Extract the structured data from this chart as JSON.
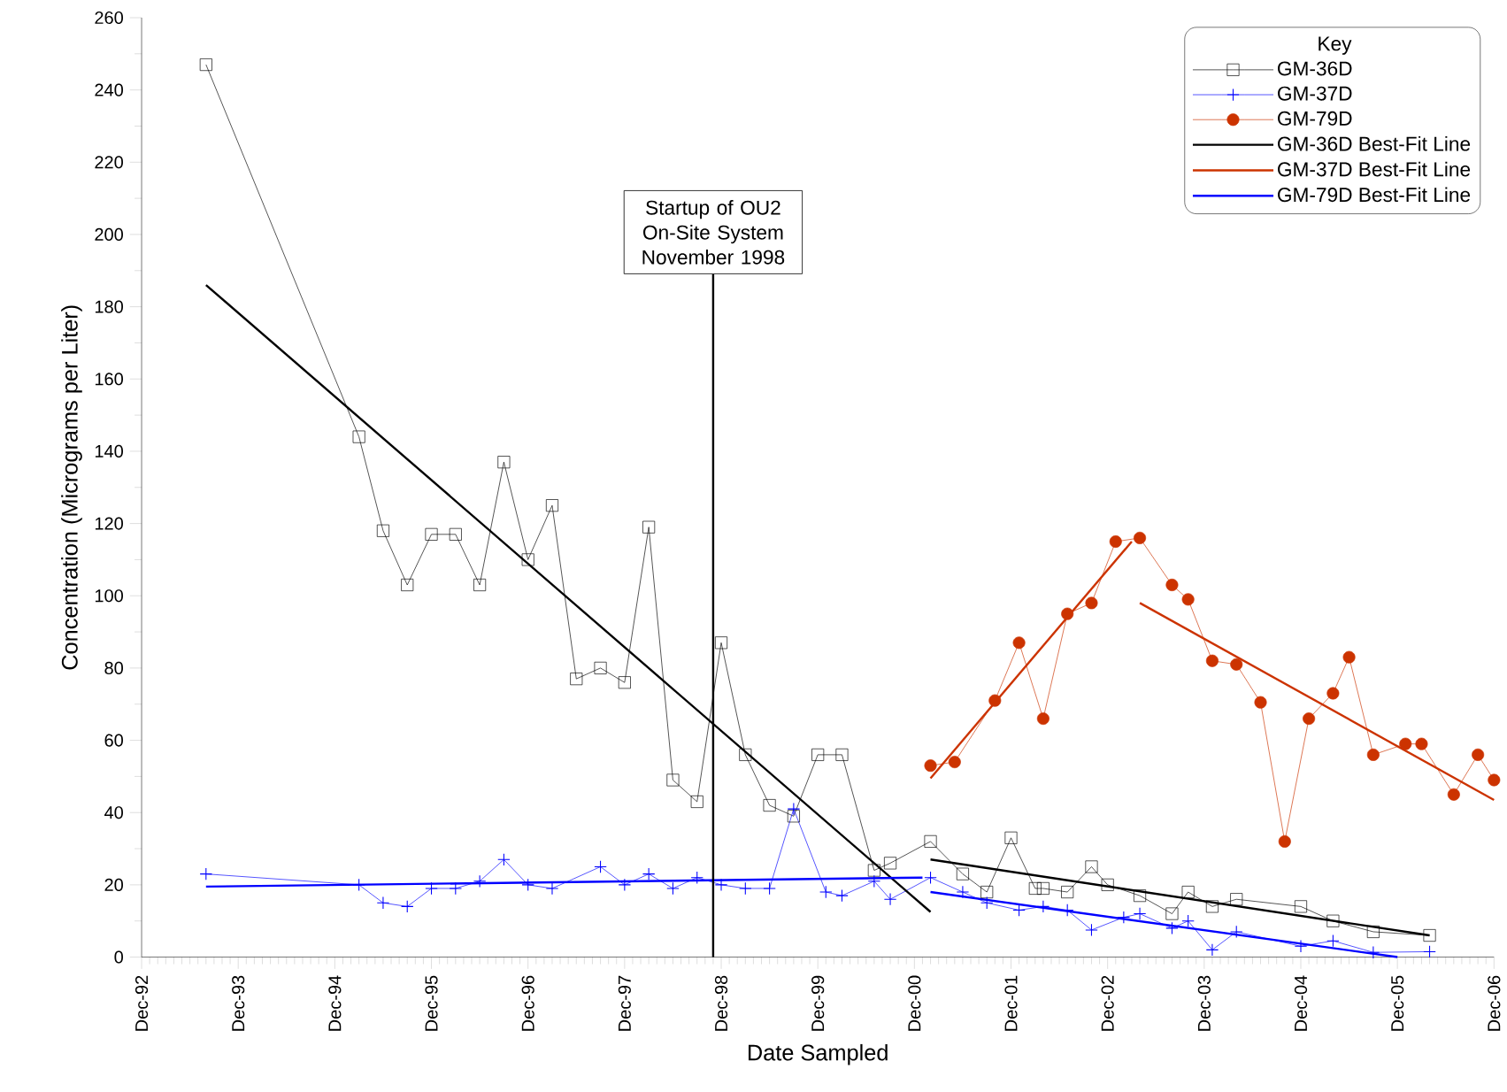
{
  "chart_data": {
    "type": "line",
    "xlabel": "Date Sampled",
    "ylabel": "Concentration (Micrograms per Liter)",
    "legend_title": "Key",
    "legend": "top right",
    "grid": false,
    "xlim": [
      "1992-12",
      "2006-12"
    ],
    "xticks": [
      {
        "value": "1992-12",
        "label": "Dec-92"
      },
      {
        "value": "1993-12",
        "label": "Dec-93"
      },
      {
        "value": "1994-12",
        "label": "Dec-94"
      },
      {
        "value": "1995-12",
        "label": "Dec-95"
      },
      {
        "value": "1996-12",
        "label": "Dec-96"
      },
      {
        "value": "1997-12",
        "label": "Dec-97"
      },
      {
        "value": "1998-12",
        "label": "Dec-98"
      },
      {
        "value": "1999-12",
        "label": "Dec-99"
      },
      {
        "value": "2000-12",
        "label": "Dec-00"
      },
      {
        "value": "2001-12",
        "label": "Dec-01"
      },
      {
        "value": "2002-12",
        "label": "Dec-02"
      },
      {
        "value": "2003-12",
        "label": "Dec-03"
      },
      {
        "value": "2004-12",
        "label": "Dec-04"
      },
      {
        "value": "2005-12",
        "label": "Dec-05"
      },
      {
        "value": "2006-12",
        "label": "Dec-06"
      }
    ],
    "ylim": [
      0,
      260
    ],
    "yticks": [
      0,
      20,
      40,
      60,
      80,
      100,
      120,
      140,
      160,
      180,
      200,
      220,
      240,
      260
    ],
    "ref_lines": [
      {
        "axis": "x",
        "value": "1998-11",
        "label": "Startup of OU2 On-Site System November 1998",
        "color": "#000000"
      }
    ],
    "series": [
      {
        "name": "GM-36D",
        "color": "#000000",
        "marker": "square",
        "x": [
          "1993-08",
          "1995-03",
          "1995-06",
          "1995-09",
          "1995-12",
          "1996-03",
          "1996-06",
          "1996-09",
          "1996-12",
          "1997-03",
          "1997-06",
          "1997-09",
          "1997-12",
          "1998-03",
          "1998-06",
          "1998-09",
          "1998-12",
          "1999-03",
          "1999-06",
          "1999-09",
          "1999-12",
          "2000-03",
          "2000-07",
          "2000-09",
          "2001-02",
          "2001-06",
          "2001-09",
          "2001-12",
          "2002-03",
          "2002-04",
          "2002-07",
          "2002-10",
          "2002-12",
          "2003-04",
          "2003-08",
          "2003-10",
          "2004-01",
          "2004-04",
          "2004-12",
          "2005-04",
          "2005-09",
          "2006-04"
        ],
        "values": [
          247,
          144,
          118,
          103,
          117,
          117,
          103,
          137,
          110,
          125,
          77,
          80,
          76,
          119,
          49,
          43,
          87,
          56,
          42,
          39,
          56,
          56,
          24,
          26,
          32,
          23,
          18,
          33,
          19,
          19,
          18,
          25,
          20,
          17,
          12,
          18,
          14,
          16,
          14,
          10,
          7,
          6
        ]
      },
      {
        "name": "GM-37D",
        "color": "#0000ff",
        "marker": "cross",
        "x": [
          "1993-08",
          "1995-03",
          "1995-06",
          "1995-09",
          "1995-12",
          "1996-03",
          "1996-06",
          "1996-09",
          "1996-12",
          "1997-03",
          "1997-09",
          "1997-12",
          "1998-03",
          "1998-06",
          "1998-09",
          "1998-12",
          "1999-03",
          "1999-06",
          "1999-09",
          "2000-01",
          "2000-03",
          "2000-07",
          "2000-09",
          "2001-02",
          "2001-06",
          "2001-09",
          "2002-01",
          "2002-04",
          "2002-07",
          "2002-10",
          "2003-02",
          "2003-04",
          "2003-08",
          "2003-10",
          "2004-01",
          "2004-04",
          "2004-12",
          "2005-04",
          "2005-09",
          "2006-04"
        ],
        "values": [
          23,
          20,
          15,
          14,
          19,
          19,
          21,
          27,
          20,
          19,
          25,
          20,
          23,
          19,
          22,
          20,
          19,
          19,
          41,
          18,
          17,
          21,
          16,
          22,
          18,
          15,
          13,
          14,
          13,
          7.5,
          11,
          12,
          8,
          10,
          2,
          7,
          3,
          4.5,
          1.3,
          1.5
        ]
      },
      {
        "name": "GM-79D",
        "color": "#cc3300",
        "marker": "circle",
        "x": [
          "2001-02",
          "2001-05",
          "2001-10",
          "2002-01",
          "2002-04",
          "2002-07",
          "2002-10",
          "2003-01",
          "2003-04",
          "2003-08",
          "2003-10",
          "2004-01",
          "2004-04",
          "2004-07",
          "2004-10",
          "2005-01",
          "2005-04",
          "2005-06",
          "2005-09",
          "2006-01",
          "2006-03",
          "2006-07",
          "2006-10",
          "2006-12"
        ],
        "values": [
          53,
          54,
          71,
          87,
          66,
          95,
          98,
          115,
          116,
          103,
          99,
          82,
          81,
          70.5,
          32,
          66,
          73,
          83,
          56,
          59,
          59,
          45,
          56,
          49
        ]
      },
      {
        "name": "GM-36D Best-Fit Line",
        "color": "#000000",
        "marker": "none",
        "x": [
          "1993-08",
          "2001-02"
        ],
        "values": [
          186,
          12.5
        ]
      },
      {
        "name": "GM-37D Best-Fit Line",
        "color": "#cc3300",
        "marker": "none",
        "x": [
          "2001-02",
          "2003-03"
        ],
        "values": [
          49.5,
          115
        ]
      },
      {
        "name": "GM-79D Best-Fit Line",
        "color": "#0000ff",
        "marker": "none",
        "x": [
          "1993-08",
          "2001-01"
        ],
        "values": [
          19.5,
          22
        ]
      },
      {
        "color": "#000000",
        "marker": "none",
        "x": [
          "2001-02",
          "2006-04"
        ],
        "values": [
          27,
          6
        ]
      },
      {
        "color": "#cc3300",
        "marker": "none",
        "x": [
          "2003-04",
          "2006-12"
        ],
        "values": [
          98,
          43.5
        ]
      },
      {
        "color": "#0000ff",
        "marker": "none",
        "x": [
          "2001-02",
          "2005-12"
        ],
        "values": [
          18,
          0
        ]
      }
    ]
  }
}
